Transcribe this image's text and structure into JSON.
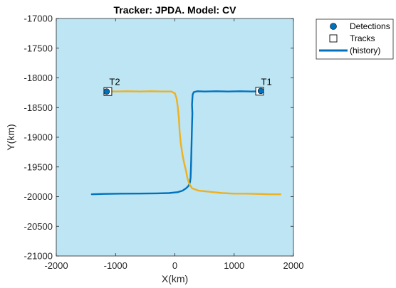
{
  "chart_data": {
    "type": "line",
    "title": "Tracker: JPDA. Model: CV",
    "xlabel": "X(km)",
    "ylabel": "Y(km)",
    "xlim": [
      -2000,
      2000
    ],
    "ylim": [
      -21000,
      -17000
    ],
    "xticks": [
      -2000,
      -1000,
      0,
      1000,
      2000
    ],
    "yticks": [
      -21000,
      -20500,
      -20000,
      -19500,
      -19000,
      -18500,
      -18000,
      -17500,
      -17000
    ],
    "xtick_labels": [
      "-2000",
      "-1000",
      "0",
      "1000",
      "2000"
    ],
    "ytick_labels": [
      "-21000",
      "-20500",
      "-20000",
      "-19500",
      "-19000",
      "-18500",
      "-18000",
      "-17500",
      "-17000"
    ],
    "background_color": "#bde5f4",
    "grid": false,
    "legend": {
      "placement": "outside-top-right",
      "entries": [
        {
          "label": "Detections",
          "marker": "filled-circle",
          "color": "#0072bd"
        },
        {
          "label": "Tracks",
          "marker": "open-square",
          "color": "#000000"
        },
        {
          "label": "(history)",
          "marker": "line",
          "color": "#0072bd"
        }
      ]
    },
    "series": [
      {
        "color": "#0072bd",
        "x": [
          1430,
          1300,
          1100,
          900,
          700,
          500,
          380,
          320,
          300,
          295,
          290,
          295,
          290,
          285,
          280,
          275,
          270,
          265,
          255,
          230,
          190,
          130,
          50,
          -100,
          -300,
          -600,
          -900,
          -1200,
          -1400
        ],
        "y": [
          -18225,
          -18230,
          -18225,
          -18230,
          -18225,
          -18230,
          -18225,
          -18240,
          -18280,
          -18350,
          -18450,
          -18600,
          -18800,
          -19000,
          -19200,
          -19400,
          -19550,
          -19680,
          -19760,
          -19820,
          -19860,
          -19900,
          -19925,
          -19940,
          -19945,
          -19948,
          -19950,
          -19955,
          -19960
        ]
      },
      {
        "color": "#edb120",
        "x": [
          -1130,
          -1000,
          -800,
          -600,
          -400,
          -200,
          -60,
          0,
          30,
          50,
          70,
          80,
          100,
          130,
          160,
          190,
          210,
          240,
          290,
          400,
          600,
          800,
          1000,
          1200,
          1400,
          1600,
          1780
        ],
        "y": [
          -18225,
          -18230,
          -18225,
          -18230,
          -18225,
          -18230,
          -18230,
          -18260,
          -18350,
          -18500,
          -18700,
          -18900,
          -19100,
          -19300,
          -19450,
          -19570,
          -19680,
          -19780,
          -19860,
          -19900,
          -19920,
          -19940,
          -19950,
          -19950,
          -19955,
          -19960,
          -19960
        ]
      }
    ],
    "detections": [
      {
        "x": 1450,
        "y": -18220
      },
      {
        "x": -1150,
        "y": -18230
      }
    ],
    "tracks": [
      {
        "label": "T1",
        "x": 1430,
        "y": -18225
      },
      {
        "label": "T2",
        "x": -1130,
        "y": -18230
      }
    ]
  }
}
